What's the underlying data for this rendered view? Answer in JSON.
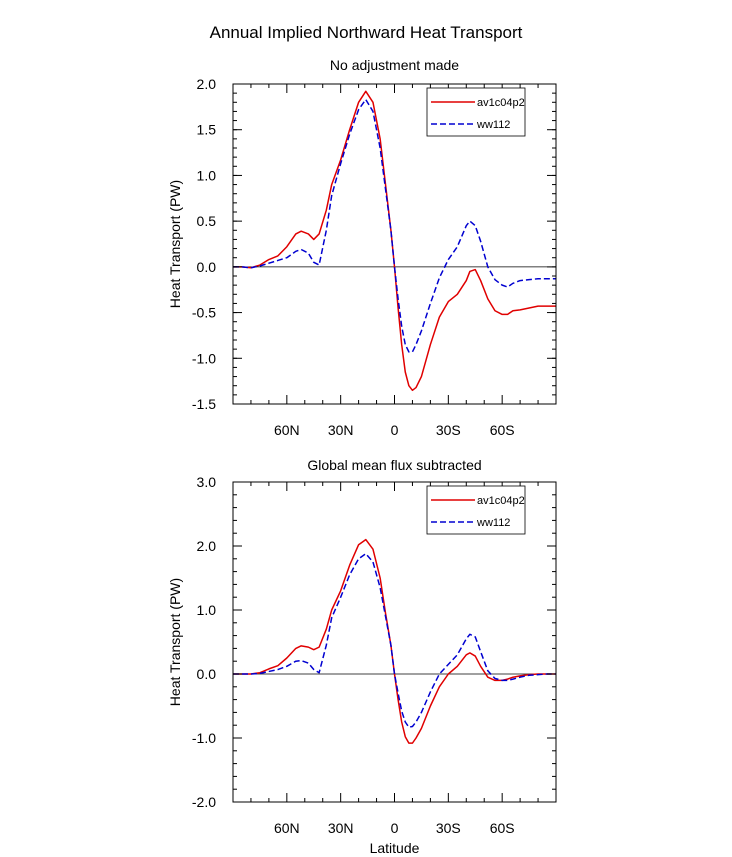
{
  "figure": {
    "title": "Annual Implied Northward Heat Transport"
  },
  "chart_data": [
    {
      "type": "line",
      "title": "No adjustment made",
      "xlabel": "",
      "ylabel": "Heat Transport (PW)",
      "xlim": [
        90,
        -90
      ],
      "ylim": [
        -1.5,
        2.0
      ],
      "xticks": [
        60,
        30,
        0,
        -30,
        -60
      ],
      "xtick_labels": [
        "60N",
        "30N",
        "0",
        "30S",
        "60S"
      ],
      "yticks": [
        -1.5,
        -1.0,
        -0.5,
        0.0,
        0.5,
        1.0,
        1.5,
        2.0
      ],
      "ytick_labels": [
        "-1.5",
        "-1.0",
        "-0.5",
        "0.0",
        "0.5",
        "1.0",
        "1.5",
        "2.0"
      ],
      "zero_line": true,
      "legend_position": "top-right",
      "series": [
        {
          "name": "av1c04p2",
          "color": "#e00000",
          "dash": "solid",
          "x": [
            90,
            85,
            80,
            75,
            70,
            65,
            60,
            55,
            52,
            48,
            45,
            42,
            38,
            35,
            30,
            25,
            20,
            16,
            12,
            8,
            5,
            2,
            0,
            -2,
            -4,
            -6,
            -8,
            -10,
            -12,
            -15,
            -20,
            -25,
            -30,
            -35,
            -40,
            -42,
            -45,
            -48,
            -52,
            -56,
            -60,
            -63,
            -66,
            -70,
            -75,
            -80,
            -85,
            -90
          ],
          "y": [
            0.0,
            0.0,
            -0.01,
            0.02,
            0.08,
            0.12,
            0.22,
            0.36,
            0.39,
            0.36,
            0.3,
            0.36,
            0.62,
            0.9,
            1.17,
            1.5,
            1.8,
            1.92,
            1.8,
            1.4,
            0.9,
            0.4,
            0.0,
            -0.45,
            -0.85,
            -1.15,
            -1.3,
            -1.35,
            -1.32,
            -1.2,
            -0.85,
            -0.55,
            -0.38,
            -0.3,
            -0.15,
            -0.05,
            -0.03,
            -0.15,
            -0.35,
            -0.48,
            -0.52,
            -0.52,
            -0.48,
            -0.47,
            -0.45,
            -0.43,
            -0.43,
            -0.43
          ]
        },
        {
          "name": "ww112",
          "color": "#0000d0",
          "dash": "dashed",
          "x": [
            90,
            85,
            80,
            75,
            70,
            65,
            60,
            55,
            52,
            48,
            45,
            42,
            38,
            35,
            30,
            25,
            20,
            16,
            12,
            8,
            5,
            2,
            0,
            -2,
            -4,
            -6,
            -8,
            -10,
            -12,
            -15,
            -20,
            -25,
            -30,
            -35,
            -40,
            -42,
            -45,
            -48,
            -52,
            -56,
            -60,
            -63,
            -66,
            -70,
            -75,
            -80,
            -85,
            -90
          ],
          "y": [
            0.0,
            0.0,
            -0.01,
            0.01,
            0.04,
            0.07,
            0.1,
            0.17,
            0.19,
            0.15,
            0.05,
            0.02,
            0.4,
            0.78,
            1.13,
            1.45,
            1.72,
            1.83,
            1.7,
            1.3,
            0.85,
            0.4,
            0.0,
            -0.35,
            -0.65,
            -0.85,
            -0.93,
            -0.93,
            -0.85,
            -0.7,
            -0.4,
            -0.12,
            0.08,
            0.22,
            0.45,
            0.5,
            0.45,
            0.28,
            0.0,
            -0.14,
            -0.2,
            -0.22,
            -0.18,
            -0.15,
            -0.14,
            -0.13,
            -0.13,
            -0.13
          ]
        }
      ]
    },
    {
      "type": "line",
      "title": "Global mean flux subtracted",
      "xlabel": "Latitude",
      "ylabel": "Heat Transport (PW)",
      "xlim": [
        90,
        -90
      ],
      "ylim": [
        -2.0,
        3.0
      ],
      "xticks": [
        60,
        30,
        0,
        -30,
        -60
      ],
      "xtick_labels": [
        "60N",
        "30N",
        "0",
        "30S",
        "60S"
      ],
      "yticks": [
        -2.0,
        -1.0,
        0.0,
        1.0,
        2.0,
        3.0
      ],
      "ytick_labels": [
        "-2.0",
        "-1.0",
        "0.0",
        "1.0",
        "2.0",
        "3.0"
      ],
      "zero_line": true,
      "legend_position": "top-right",
      "series": [
        {
          "name": "av1c04p2",
          "color": "#e00000",
          "dash": "solid",
          "x": [
            90,
            85,
            80,
            75,
            70,
            65,
            60,
            55,
            52,
            48,
            45,
            42,
            38,
            35,
            30,
            25,
            20,
            16,
            12,
            8,
            5,
            2,
            0,
            -2,
            -4,
            -6,
            -8,
            -10,
            -12,
            -15,
            -20,
            -25,
            -30,
            -35,
            -40,
            -42,
            -45,
            -48,
            -52,
            -56,
            -60,
            -63,
            -66,
            -70,
            -75,
            -80,
            -85,
            -90
          ],
          "y": [
            0.0,
            0.0,
            0.0,
            0.02,
            0.08,
            0.13,
            0.25,
            0.4,
            0.44,
            0.42,
            0.38,
            0.42,
            0.7,
            1.0,
            1.3,
            1.7,
            2.02,
            2.1,
            1.95,
            1.5,
            0.95,
            0.45,
            0.0,
            -0.4,
            -0.75,
            -0.98,
            -1.08,
            -1.08,
            -1.0,
            -0.85,
            -0.5,
            -0.2,
            0.0,
            0.12,
            0.3,
            0.33,
            0.28,
            0.12,
            -0.05,
            -0.1,
            -0.1,
            -0.08,
            -0.05,
            -0.03,
            -0.01,
            0.0,
            0.0,
            0.0
          ]
        },
        {
          "name": "ww112",
          "color": "#0000d0",
          "dash": "dashed",
          "x": [
            90,
            85,
            80,
            75,
            70,
            65,
            60,
            55,
            52,
            48,
            45,
            42,
            38,
            35,
            30,
            25,
            20,
            16,
            12,
            8,
            5,
            2,
            0,
            -2,
            -4,
            -6,
            -8,
            -10,
            -12,
            -15,
            -20,
            -25,
            -30,
            -35,
            -40,
            -42,
            -45,
            -48,
            -52,
            -56,
            -60,
            -63,
            -66,
            -70,
            -75,
            -80,
            -85,
            -90
          ],
          "y": [
            0.0,
            0.0,
            0.0,
            0.01,
            0.04,
            0.07,
            0.12,
            0.2,
            0.21,
            0.17,
            0.07,
            0.02,
            0.45,
            0.88,
            1.2,
            1.55,
            1.8,
            1.88,
            1.75,
            1.35,
            0.9,
            0.45,
            0.0,
            -0.3,
            -0.58,
            -0.75,
            -0.83,
            -0.82,
            -0.75,
            -0.6,
            -0.28,
            0.0,
            0.15,
            0.3,
            0.55,
            0.62,
            0.58,
            0.35,
            0.05,
            -0.07,
            -0.1,
            -0.1,
            -0.08,
            -0.05,
            -0.02,
            -0.01,
            0.0,
            0.0
          ]
        }
      ]
    }
  ]
}
